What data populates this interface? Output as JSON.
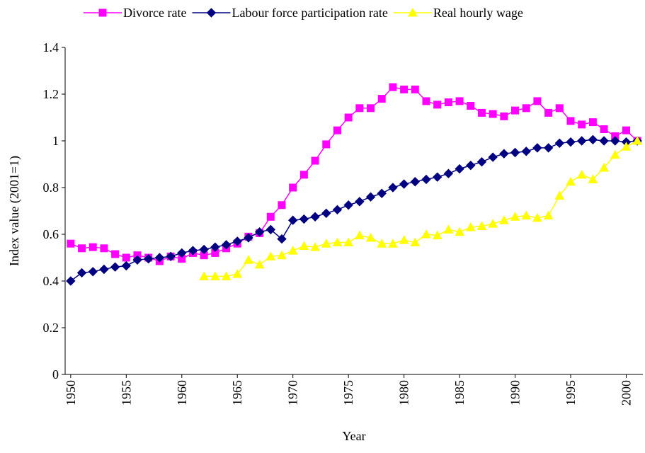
{
  "chart_data": {
    "type": "line",
    "x_label": "Year",
    "y_label": "Index value (2001=1)",
    "x": [
      1950,
      1951,
      1952,
      1953,
      1954,
      1955,
      1956,
      1957,
      1958,
      1959,
      1960,
      1961,
      1962,
      1963,
      1964,
      1965,
      1966,
      1967,
      1968,
      1969,
      1970,
      1971,
      1972,
      1973,
      1974,
      1975,
      1976,
      1977,
      1978,
      1979,
      1980,
      1981,
      1982,
      1983,
      1984,
      1985,
      1986,
      1987,
      1988,
      1989,
      1990,
      1991,
      1992,
      1993,
      1994,
      1995,
      1996,
      1997,
      1998,
      1999,
      2000,
      2001
    ],
    "xlim": [
      1949.5,
      2001.5
    ],
    "xticks": [
      1950,
      1955,
      1960,
      1965,
      1970,
      1975,
      1980,
      1985,
      1990,
      1995,
      2000
    ],
    "ylim": [
      0,
      1.4
    ],
    "yticks": [
      0,
      0.2,
      0.4,
      0.6,
      0.8,
      1,
      1.2,
      1.4
    ],
    "legend": "top",
    "series": [
      {
        "name": "Divorce rate",
        "color": "#ff00ff",
        "marker": "square",
        "values": [
          0.56,
          0.54,
          0.545,
          0.54,
          0.515,
          0.5,
          0.51,
          0.5,
          0.485,
          0.505,
          0.495,
          0.52,
          0.51,
          0.52,
          0.54,
          0.56,
          0.59,
          0.605,
          0.675,
          0.725,
          0.8,
          0.855,
          0.915,
          0.985,
          1.045,
          1.1,
          1.14,
          1.14,
          1.18,
          1.23,
          1.22,
          1.22,
          1.17,
          1.155,
          1.165,
          1.17,
          1.15,
          1.12,
          1.115,
          1.105,
          1.13,
          1.14,
          1.17,
          1.12,
          1.14,
          1.085,
          1.07,
          1.08,
          1.05,
          1.02,
          1.045,
          1.0
        ]
      },
      {
        "name": "Labour force participation rate",
        "color": "#000080",
        "marker": "diamond",
        "values": [
          0.4,
          0.435,
          0.44,
          0.45,
          0.46,
          0.465,
          0.49,
          0.495,
          0.5,
          0.505,
          0.52,
          0.53,
          0.535,
          0.545,
          0.555,
          0.57,
          0.585,
          0.61,
          0.62,
          0.58,
          0.66,
          0.665,
          0.675,
          0.69,
          0.705,
          0.725,
          0.74,
          0.76,
          0.775,
          0.8,
          0.815,
          0.825,
          0.835,
          0.845,
          0.86,
          0.88,
          0.895,
          0.91,
          0.93,
          0.945,
          0.95,
          0.955,
          0.97,
          0.97,
          0.99,
          0.995,
          1.0,
          1.005,
          1.0,
          1.0,
          0.995,
          1.0
        ]
      },
      {
        "name": "Real hourly wage",
        "color": "#ffff00",
        "marker": "triangle",
        "values": [
          null,
          null,
          null,
          null,
          null,
          null,
          null,
          null,
          null,
          null,
          null,
          null,
          0.42,
          0.42,
          0.42,
          0.43,
          0.49,
          0.47,
          0.505,
          0.51,
          0.53,
          0.55,
          0.545,
          0.56,
          0.565,
          0.565,
          0.595,
          0.585,
          0.56,
          0.56,
          0.575,
          0.565,
          0.6,
          0.595,
          0.62,
          0.61,
          0.63,
          0.635,
          0.645,
          0.66,
          0.675,
          0.68,
          0.67,
          0.68,
          0.765,
          0.825,
          0.855,
          0.835,
          0.885,
          0.94,
          0.975,
          1.0
        ]
      }
    ]
  }
}
